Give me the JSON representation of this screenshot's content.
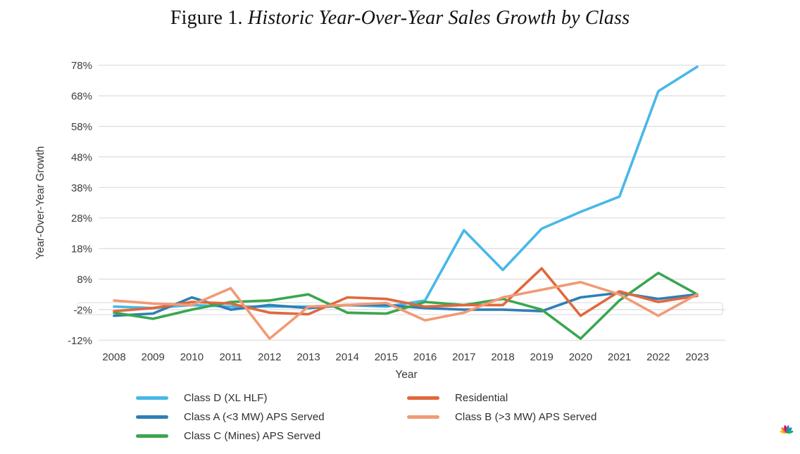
{
  "figure": {
    "title_prefix": "Figure 1. ",
    "title_italic": "Historic Year-Over-Year Sales Growth by Class"
  },
  "chart_data": {
    "type": "line",
    "title": "Figure 1. Historic Year-Over-Year Sales Growth by Class",
    "xlabel": "Year",
    "ylabel": "Year-Over-Year Growth",
    "x": [
      2008,
      2009,
      2010,
      2011,
      2012,
      2013,
      2014,
      2015,
      2016,
      2017,
      2018,
      2019,
      2020,
      2021,
      2022,
      2023
    ],
    "y_tick_labels": [
      "78%",
      "68%",
      "58%",
      "48%",
      "38%",
      "28%",
      "18%",
      "8%",
      "-2%",
      "-12%"
    ],
    "y_tick_values": [
      78,
      68,
      58,
      48,
      38,
      28,
      18,
      8,
      -2,
      -12
    ],
    "ylim": [
      -12,
      78
    ],
    "grid": true,
    "legend_position": "bottom",
    "value_unit": "percent",
    "series": [
      {
        "name": "Class D (XL HLF)",
        "color": "#47b8e8",
        "values": [
          -1,
          -1.5,
          -0.5,
          -1,
          -1,
          -1,
          -0.5,
          -1,
          1,
          24,
          11,
          24.5,
          30,
          35,
          69.5,
          77.5
        ]
      },
      {
        "name": "Class A (<3 MW) APS Served",
        "color": "#2e7fb5",
        "values": [
          -4,
          -3.3,
          2,
          -2,
          -0.5,
          -1.5,
          -0.5,
          -0.5,
          -1.5,
          -2,
          -2,
          -2.5,
          2,
          3.5,
          1.5,
          3
        ]
      },
      {
        "name": "Class C (Mines) APS Served",
        "color": "#3aa64f",
        "values": [
          -3,
          -5,
          -2,
          0.5,
          1,
          3,
          -3,
          -3.3,
          0.5,
          -0.5,
          1.5,
          -2,
          -11.5,
          1,
          10,
          3
        ]
      },
      {
        "name": "Residential",
        "color": "#e0683c",
        "values": [
          -2.5,
          -1.5,
          0.5,
          0,
          -3,
          -3.5,
          2,
          1.5,
          -1,
          -0.5,
          -0.5,
          11.5,
          -4,
          4,
          0.5,
          2.5
        ]
      },
      {
        "name": "Class B (>3 MW) APS Served",
        "color": "#f19a75",
        "values": [
          1,
          0,
          -0.5,
          5,
          -11.5,
          -1,
          -0.5,
          0.2,
          -5.5,
          -3,
          2,
          4.5,
          7,
          3,
          -4,
          3
        ]
      }
    ],
    "legend_columns": [
      [
        0,
        1,
        2
      ],
      [
        3,
        4
      ]
    ]
  },
  "branding": {
    "logo": "nbc-peacock-icon"
  }
}
